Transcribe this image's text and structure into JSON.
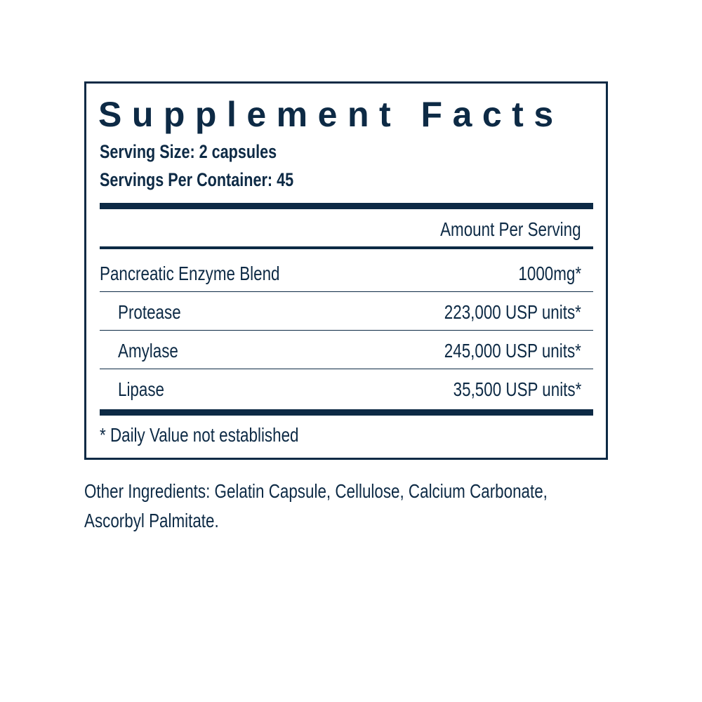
{
  "label": {
    "title": "Supplement Facts",
    "serving_size": "Serving Size: 2 capsules",
    "servings_per_container": "Servings Per Container: 45",
    "amount_header": "Amount Per Serving",
    "rows": [
      {
        "name": "Pancreatic Enzyme Blend",
        "amount": "1000mg*"
      },
      {
        "name": "Protease",
        "amount": "223,000 USP units*"
      },
      {
        "name": "Amylase",
        "amount": "245,000 USP units*"
      },
      {
        "name": "Lipase",
        "amount": "35,500 USP units*"
      }
    ],
    "footnote": "* Daily Value not established"
  },
  "other_ingredients": {
    "line1": "Other Ingredients: Gelatin Capsule, Cellulose, Calcium Carbonate,",
    "line2": "Ascorbyl Palmitate."
  },
  "colors": {
    "ink": "#0d2a45",
    "background": "#ffffff"
  }
}
